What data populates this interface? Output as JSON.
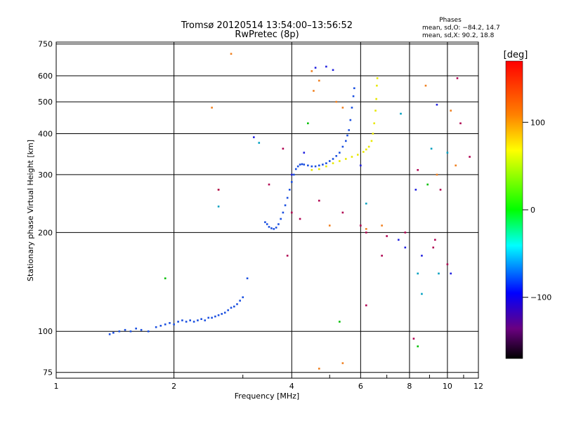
{
  "chart_data": {
    "type": "scatter",
    "title": "Tromsø 20120514 13:54:00–13:56:52",
    "subtitle": "RwPretec (8p)",
    "xlabel": "Frequency [MHz]",
    "ylabel": "Stationary phase Virtual Height [km]",
    "x_scale": "log",
    "y_scale": "log",
    "xlim": [
      1,
      12
    ],
    "ylim": [
      72,
      760
    ],
    "grid": true,
    "x_ticks": [
      1,
      2,
      4,
      6,
      8,
      10,
      12
    ],
    "y_ticks": [
      75,
      100,
      200,
      300,
      400,
      500,
      600,
      750
    ],
    "phase_stats": {
      "heading": "Phases",
      "line1": "mean, sd,O: −84.2, 14.7",
      "line2": "mean, sd,X:  90.2, 18.8"
    },
    "colorbar": {
      "label": "[deg]",
      "range": [
        -170,
        170
      ],
      "ticks": [
        100,
        0,
        -100
      ],
      "colors": [
        "#ff0000",
        "#ff8000",
        "#ffff00",
        "#00ff00",
        "#00ffff",
        "#0000ff",
        "#800080",
        "#000000"
      ]
    },
    "series": [
      {
        "color": "#1a4fe0",
        "points": [
          [
            1.37,
            98
          ],
          [
            1.4,
            99
          ],
          [
            1.45,
            100
          ],
          [
            1.5,
            101
          ],
          [
            1.55,
            100
          ],
          [
            1.6,
            102
          ],
          [
            1.65,
            101
          ],
          [
            1.72,
            100
          ],
          [
            1.8,
            103
          ],
          [
            1.85,
            104
          ],
          [
            1.9,
            105
          ],
          [
            1.95,
            106
          ],
          [
            2.0,
            105
          ],
          [
            2.05,
            107
          ],
          [
            2.1,
            108
          ],
          [
            2.15,
            107
          ],
          [
            2.2,
            108
          ],
          [
            2.25,
            107
          ],
          [
            2.3,
            108
          ],
          [
            2.35,
            109
          ],
          [
            2.4,
            108
          ],
          [
            2.45,
            110
          ],
          [
            2.5,
            110
          ],
          [
            2.55,
            111
          ],
          [
            2.6,
            112
          ],
          [
            2.65,
            113
          ],
          [
            2.7,
            114
          ],
          [
            2.75,
            116
          ],
          [
            2.8,
            118
          ],
          [
            2.85,
            119
          ],
          [
            2.9,
            121
          ],
          [
            2.95,
            124
          ],
          [
            3.0,
            127
          ],
          [
            3.08,
            145
          ],
          [
            3.42,
            215
          ],
          [
            3.46,
            212
          ],
          [
            3.5,
            208
          ],
          [
            3.55,
            206
          ],
          [
            3.6,
            205
          ],
          [
            3.65,
            207
          ],
          [
            3.7,
            212
          ],
          [
            3.75,
            220
          ],
          [
            3.8,
            230
          ],
          [
            3.85,
            242
          ],
          [
            3.9,
            255
          ],
          [
            3.95,
            270
          ],
          [
            4.0,
            285
          ],
          [
            4.05,
            300
          ],
          [
            4.1,
            312
          ],
          [
            4.15,
            318
          ],
          [
            4.2,
            322
          ],
          [
            4.25,
            323
          ],
          [
            4.3,
            322
          ],
          [
            4.4,
            320
          ],
          [
            4.5,
            318
          ],
          [
            4.6,
            318
          ],
          [
            4.7,
            320
          ],
          [
            4.8,
            322
          ],
          [
            4.9,
            325
          ],
          [
            5.0,
            330
          ],
          [
            5.1,
            335
          ],
          [
            5.2,
            342
          ],
          [
            5.3,
            350
          ],
          [
            5.4,
            365
          ],
          [
            5.5,
            380
          ],
          [
            5.55,
            395
          ],
          [
            5.6,
            410
          ],
          [
            5.65,
            440
          ],
          [
            5.7,
            480
          ],
          [
            5.75,
            520
          ],
          [
            5.78,
            550
          ]
        ]
      },
      {
        "color": "#e8e800",
        "points": [
          [
            4.5,
            310
          ],
          [
            4.7,
            312
          ],
          [
            4.9,
            318
          ],
          [
            5.1,
            325
          ],
          [
            5.3,
            330
          ],
          [
            5.5,
            335
          ],
          [
            5.7,
            340
          ],
          [
            5.9,
            345
          ],
          [
            6.1,
            352
          ],
          [
            6.2,
            358
          ],
          [
            6.3,
            365
          ],
          [
            6.4,
            380
          ],
          [
            6.45,
            400
          ],
          [
            6.5,
            430
          ],
          [
            6.55,
            470
          ],
          [
            6.58,
            510
          ],
          [
            6.6,
            560
          ],
          [
            6.62,
            590
          ]
        ]
      },
      {
        "color": "#f08020",
        "points": [
          [
            2.8,
            700
          ],
          [
            2.5,
            480
          ],
          [
            2.6,
            270
          ],
          [
            4.55,
            540
          ],
          [
            4.7,
            580
          ],
          [
            5.2,
            500
          ],
          [
            5.4,
            480
          ],
          [
            6.2,
            205
          ],
          [
            8.8,
            560
          ],
          [
            9.4,
            300
          ],
          [
            10.5,
            320
          ],
          [
            4.7,
            77
          ],
          [
            5.4,
            80
          ],
          [
            10.2,
            470
          ],
          [
            4.5,
            620
          ],
          [
            5.0,
            210
          ],
          [
            6.8,
            210
          ]
        ]
      },
      {
        "color": "#00a0c0",
        "points": [
          [
            3.3,
            375
          ],
          [
            2.6,
            240
          ],
          [
            8.4,
            150
          ],
          [
            9.5,
            150
          ],
          [
            9.1,
            360
          ],
          [
            10.0,
            350
          ],
          [
            6.2,
            245
          ],
          [
            8.6,
            130
          ],
          [
            7.6,
            460
          ]
        ]
      },
      {
        "color": "#00c000",
        "points": [
          [
            1.9,
            145
          ],
          [
            4.4,
            430
          ],
          [
            5.3,
            107
          ],
          [
            8.4,
            90
          ],
          [
            8.9,
            280
          ]
        ]
      },
      {
        "color": "#b00050",
        "points": [
          [
            3.8,
            360
          ],
          [
            2.6,
            270
          ],
          [
            3.5,
            280
          ],
          [
            4.0,
            230
          ],
          [
            4.7,
            250
          ],
          [
            5.4,
            230
          ],
          [
            4.2,
            220
          ],
          [
            6.0,
            210
          ],
          [
            6.2,
            200
          ],
          [
            7.0,
            195
          ],
          [
            7.8,
            200
          ],
          [
            8.4,
            310
          ],
          [
            9.2,
            180
          ],
          [
            10.0,
            160
          ],
          [
            9.6,
            270
          ],
          [
            6.8,
            170
          ],
          [
            6.2,
            120
          ],
          [
            8.2,
            95
          ],
          [
            9.3,
            190
          ],
          [
            3.9,
            170
          ],
          [
            10.8,
            430
          ],
          [
            11.4,
            340
          ],
          [
            10.6,
            590
          ]
        ]
      },
      {
        "color": "#2020e0",
        "points": [
          [
            3.2,
            390
          ],
          [
            4.6,
            635
          ],
          [
            4.9,
            640
          ],
          [
            5.1,
            625
          ],
          [
            6.0,
            320
          ],
          [
            7.5,
            190
          ],
          [
            8.3,
            270
          ],
          [
            9.4,
            490
          ],
          [
            10.2,
            150
          ],
          [
            7.8,
            180
          ],
          [
            8.6,
            170
          ],
          [
            4.3,
            350
          ],
          [
            4.0,
            300
          ]
        ]
      }
    ]
  }
}
